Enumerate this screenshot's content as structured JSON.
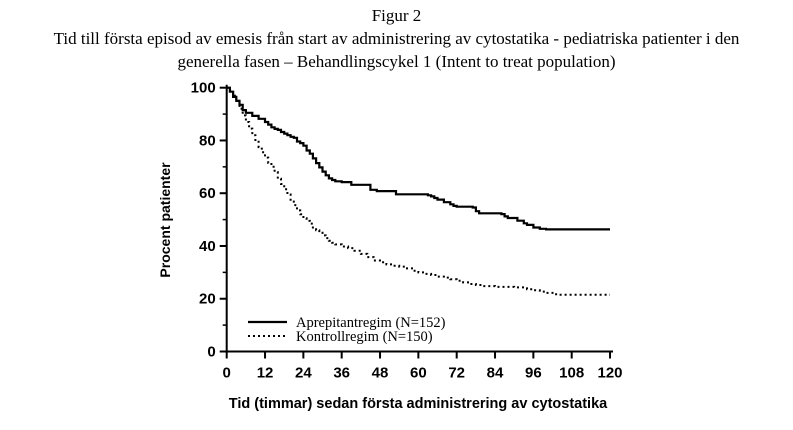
{
  "header": {
    "figure_label": "Figur 2",
    "title_line1": "Tid till första episod av emesis från start av administrering av cytostatika - pediatriska patienter i den",
    "title_line2": "generella fasen – Behandlingscykel 1 (Intent to treat population)"
  },
  "chart_data": {
    "type": "line",
    "subtype": "kaplan-meier-step",
    "title": "Figur 2",
    "subtitle": "Tid till första episod av emesis från start av administrering av cytostatika - pediatriska patienter i den generella fasen – Behandlingscykel 1 (Intent to treat population)",
    "xlabel": "Tid (timmar) sedan första administrering av cytostatika",
    "ylabel": "Procent patienter",
    "xlim": [
      0,
      120
    ],
    "ylim": [
      0,
      100
    ],
    "xticks": [
      0,
      12,
      24,
      36,
      48,
      60,
      72,
      84,
      96,
      108,
      120
    ],
    "yticks": [
      0,
      20,
      40,
      60,
      80,
      100
    ],
    "y_minor_ticks": [
      10,
      30,
      50,
      70,
      90
    ],
    "grid": false,
    "legend_position": "lower-left",
    "colors": {
      "line": "#000000",
      "background": "#ffffff",
      "text": "#000000"
    },
    "series": [
      {
        "name": "Aprepitantregim (N=152)",
        "style": "solid",
        "points": [
          [
            0,
            100
          ],
          [
            1,
            98.5
          ],
          [
            2,
            96.5
          ],
          [
            3,
            95
          ],
          [
            4,
            93.5
          ],
          [
            5,
            91.5
          ],
          [
            6,
            90.5
          ],
          [
            8,
            89.3
          ],
          [
            10,
            88.2
          ],
          [
            12,
            87
          ],
          [
            13,
            86
          ],
          [
            14,
            85
          ],
          [
            15,
            84.4
          ],
          [
            16,
            84
          ],
          [
            17,
            83.2
          ],
          [
            18,
            82.6
          ],
          [
            19,
            82
          ],
          [
            20,
            81.4
          ],
          [
            21,
            81
          ],
          [
            22,
            79.6
          ],
          [
            23,
            79
          ],
          [
            24,
            78
          ],
          [
            25,
            76.2
          ],
          [
            26,
            75
          ],
          [
            27,
            73.2
          ],
          [
            28,
            71.4
          ],
          [
            29,
            69.8
          ],
          [
            30,
            68.2
          ],
          [
            31,
            66.8
          ],
          [
            32,
            65.6
          ],
          [
            33,
            65
          ],
          [
            34,
            64.5
          ],
          [
            36,
            64.2
          ],
          [
            39,
            63.2
          ],
          [
            45,
            61.3
          ],
          [
            47,
            60.8
          ],
          [
            53,
            59.6
          ],
          [
            63,
            59.2
          ],
          [
            64,
            58.8
          ],
          [
            65,
            58.2
          ],
          [
            66,
            57.6
          ],
          [
            68,
            56.6
          ],
          [
            70,
            55.8
          ],
          [
            71,
            55.2
          ],
          [
            72,
            54.9
          ],
          [
            77,
            54.6
          ],
          [
            78,
            53.2
          ],
          [
            79,
            52.4
          ],
          [
            86,
            52.1
          ],
          [
            87,
            51.2
          ],
          [
            88,
            50.6
          ],
          [
            91,
            49.6
          ],
          [
            93,
            48.6
          ],
          [
            94,
            48
          ],
          [
            96,
            47
          ],
          [
            98,
            46.5
          ],
          [
            100,
            46.3
          ],
          [
            120,
            46.3
          ]
        ]
      },
      {
        "name": "Kontrollregim (N=150)",
        "style": "dotted",
        "points": [
          [
            0,
            100
          ],
          [
            1,
            99
          ],
          [
            2,
            97
          ],
          [
            3,
            95
          ],
          [
            4,
            92
          ],
          [
            5,
            89.5
          ],
          [
            6,
            87
          ],
          [
            7,
            84.5
          ],
          [
            8,
            82
          ],
          [
            9,
            79.5
          ],
          [
            10,
            77.5
          ],
          [
            11,
            75.5
          ],
          [
            12,
            73.5
          ],
          [
            13,
            71.5
          ],
          [
            14,
            70
          ],
          [
            15,
            68
          ],
          [
            16,
            65.5
          ],
          [
            17,
            63.5
          ],
          [
            18,
            61.5
          ],
          [
            19,
            59.5
          ],
          [
            20,
            57.5
          ],
          [
            21,
            55.5
          ],
          [
            22,
            53.5
          ],
          [
            23,
            52
          ],
          [
            24,
            50.5
          ],
          [
            25,
            49.5
          ],
          [
            26,
            48.5
          ],
          [
            27,
            47
          ],
          [
            28,
            46
          ],
          [
            29,
            45
          ],
          [
            30,
            44
          ],
          [
            31,
            43
          ],
          [
            32,
            42
          ],
          [
            33,
            41.2
          ],
          [
            34,
            40.6
          ],
          [
            36,
            39.8
          ],
          [
            38,
            39.2
          ],
          [
            40,
            38.2
          ],
          [
            42,
            37
          ],
          [
            44,
            35.8
          ],
          [
            46,
            34.5
          ],
          [
            48,
            33.8
          ],
          [
            50,
            33
          ],
          [
            52,
            32.5
          ],
          [
            54,
            32.2
          ],
          [
            56,
            31.5
          ],
          [
            58,
            30.6
          ],
          [
            60,
            30
          ],
          [
            62,
            29.4
          ],
          [
            64,
            29
          ],
          [
            66,
            28.4
          ],
          [
            68,
            28
          ],
          [
            70,
            27.4
          ],
          [
            72,
            26.8
          ],
          [
            74,
            26.2
          ],
          [
            76,
            25.6
          ],
          [
            78,
            25.2
          ],
          [
            80,
            24.8
          ],
          [
            84,
            24.5
          ],
          [
            90,
            24.3
          ],
          [
            94,
            23.6
          ],
          [
            96,
            23.2
          ],
          [
            98,
            22.7
          ],
          [
            100,
            22.2
          ],
          [
            102,
            21.7
          ],
          [
            104,
            21.5
          ],
          [
            120,
            21.5
          ]
        ]
      }
    ]
  }
}
